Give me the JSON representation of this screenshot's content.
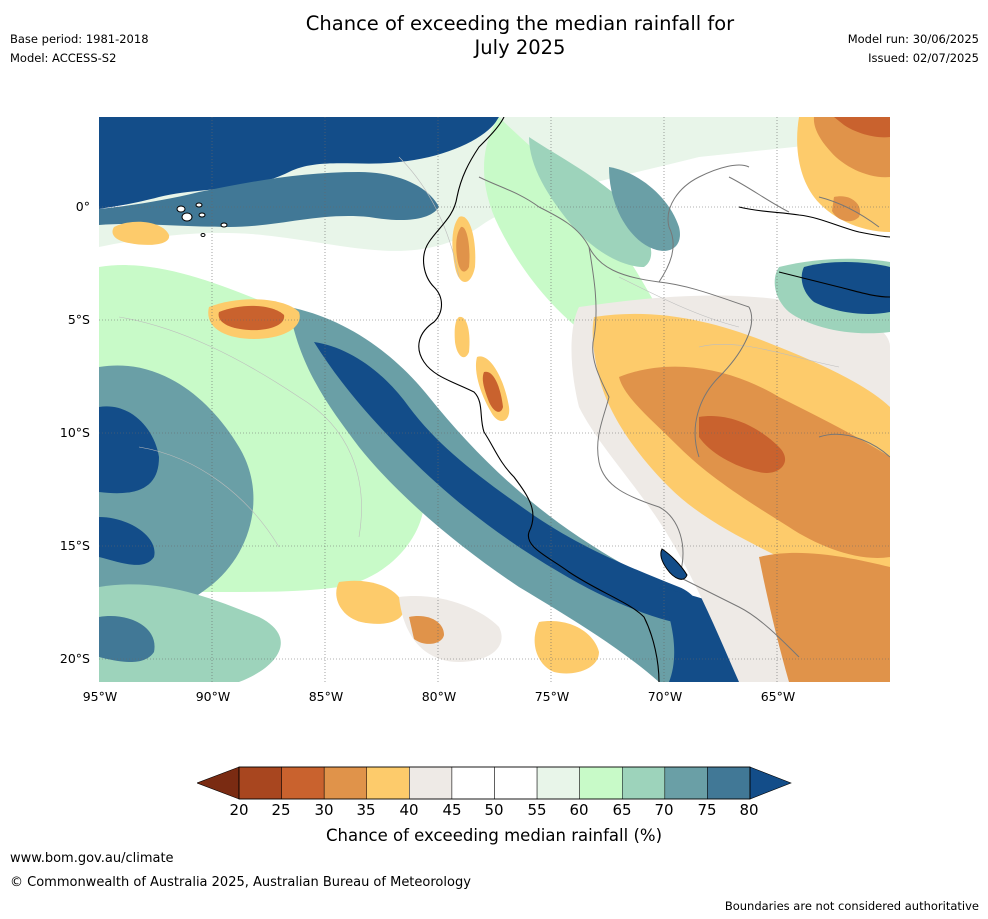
{
  "meta": {
    "base_period": "Base period: 1981-2018",
    "model": "Model: ACCESS-S2",
    "model_run": "Model run: 30/06/2025",
    "issued": "Issued: 02/07/2025"
  },
  "title": {
    "line1": "Chance of exceeding the median rainfall for",
    "line2": "July 2025"
  },
  "map": {
    "lat_labels": [
      "0°",
      "5°S",
      "10°S",
      "15°S",
      "20°S"
    ],
    "lon_labels": [
      "95°W",
      "90°W",
      "85°W",
      "80°W",
      "75°W",
      "70°W",
      "65°W"
    ],
    "colors": {
      "c_lt20": "#7a2b12",
      "c_20_25": "#a8461f",
      "c_25_30": "#c9622e",
      "c_30_35": "#e0934a",
      "c_35_40": "#fdcb6b",
      "c_40_45": "#eeeae6",
      "c_45_55": "#ffffff",
      "c_55_60": "#e8f5e9",
      "c_60_65": "#c8fac8",
      "c_65_70": "#9dd3bb",
      "c_70_75": "#6a9fa6",
      "c_75_80": "#417896",
      "c_gt80": "#134d89"
    }
  },
  "colorbar": {
    "ticks": [
      "20",
      "25",
      "30",
      "35",
      "40",
      "45",
      "50",
      "55",
      "60",
      "65",
      "70",
      "75",
      "80"
    ],
    "label": "Chance of exceeding median rainfall (%)"
  },
  "footer": {
    "url": "www.bom.gov.au/climate",
    "copyright": "© Commonwealth of Australia 2025, Australian Bureau of Meteorology",
    "note": "Boundaries are not considered authoritative"
  }
}
